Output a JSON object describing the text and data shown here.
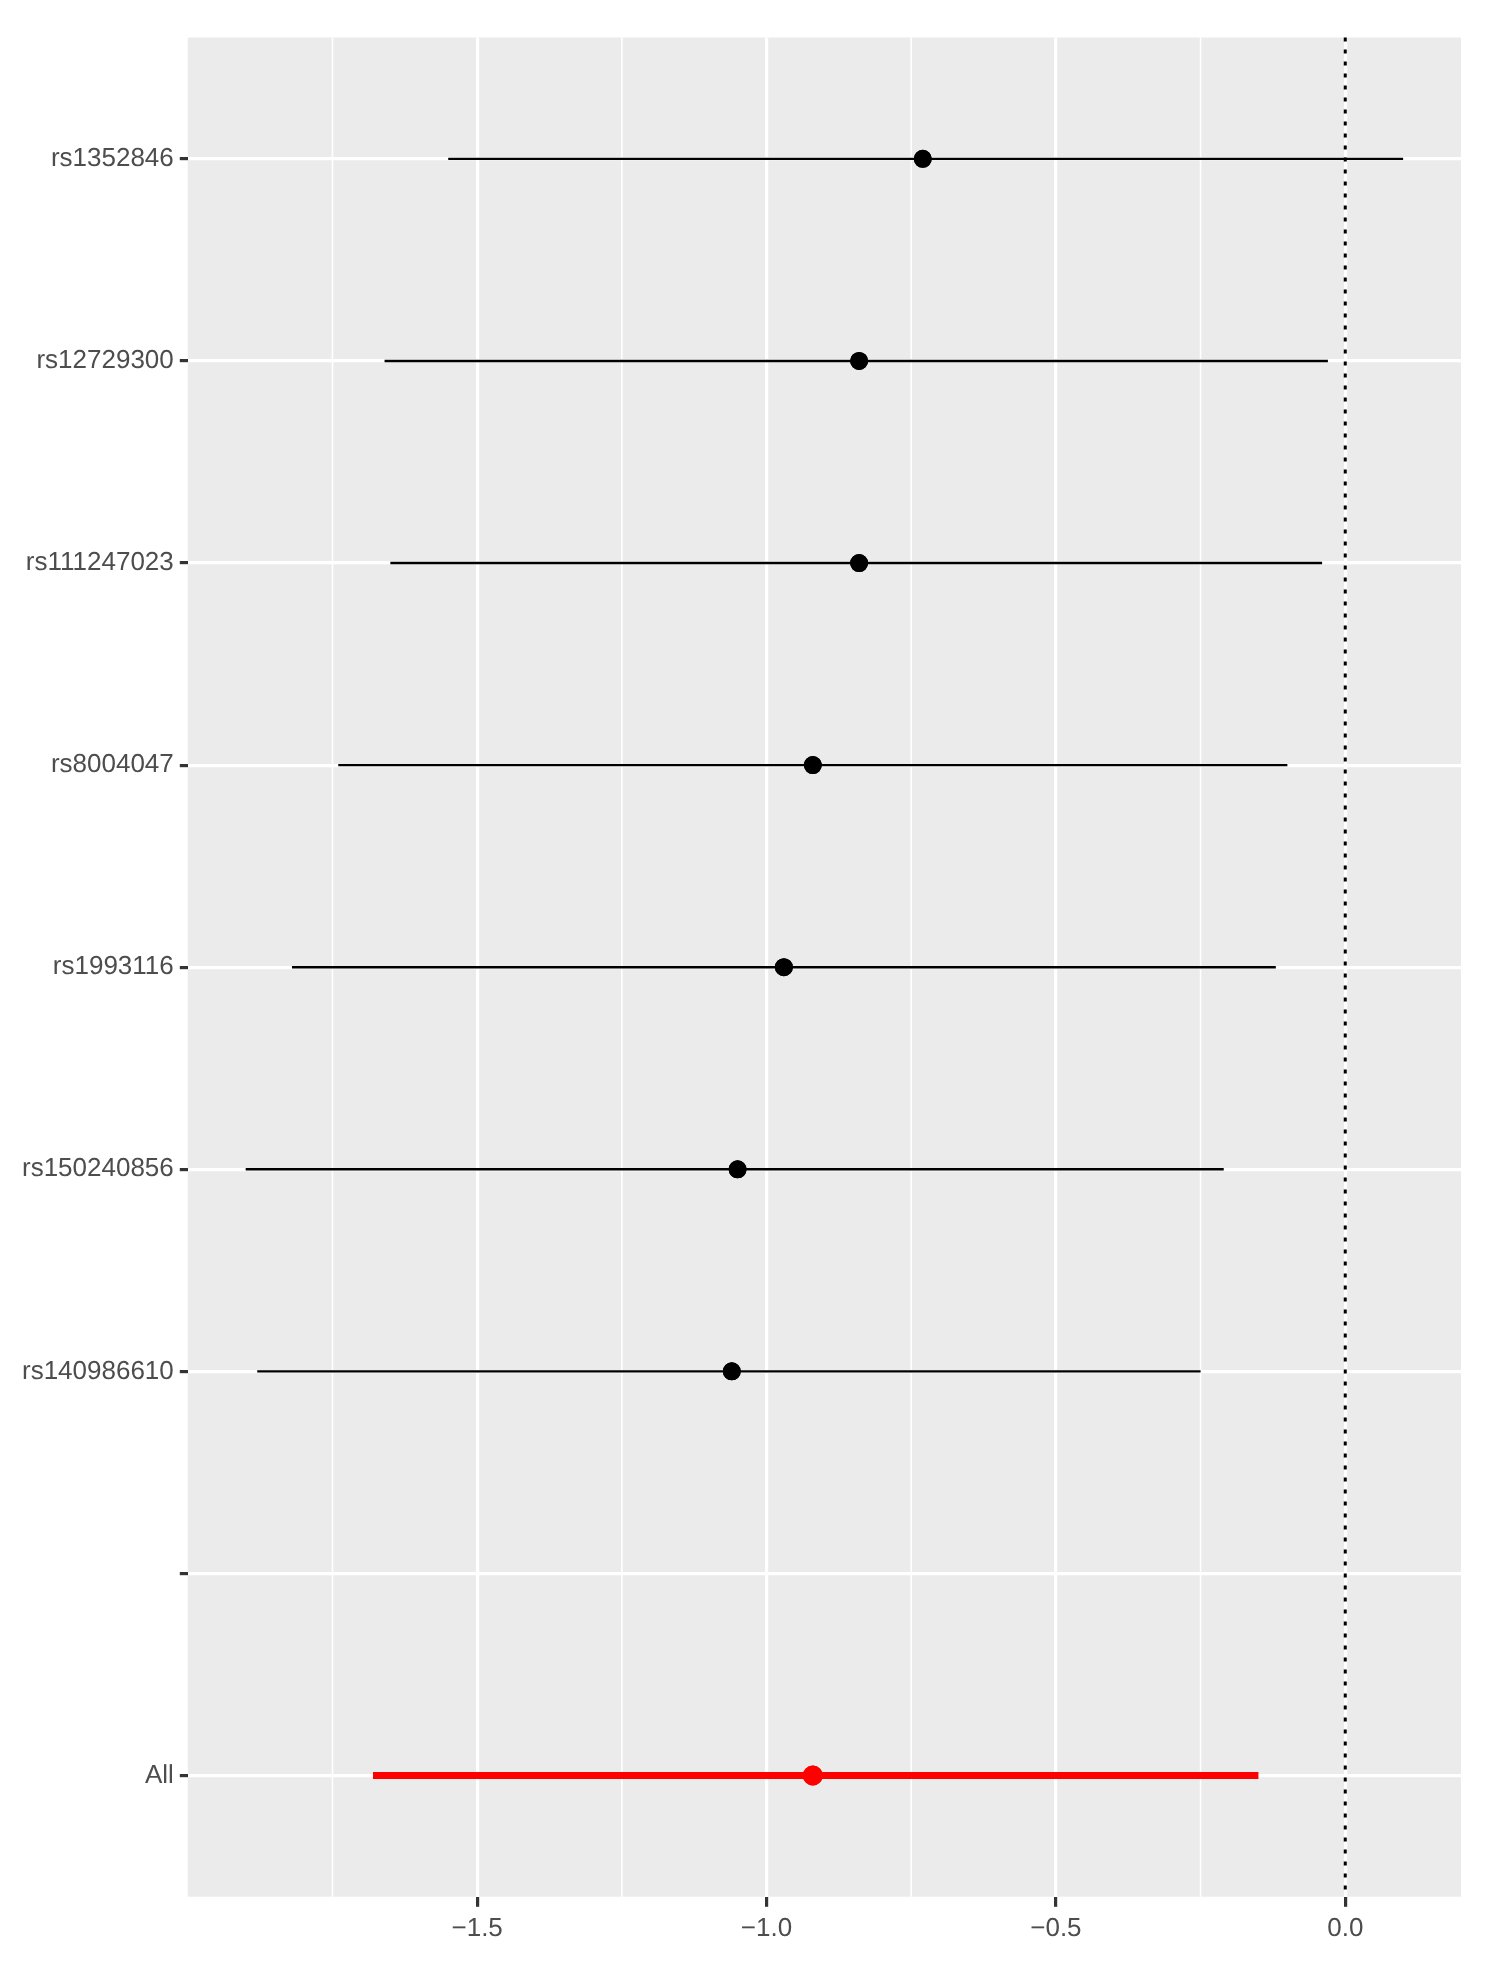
{
  "chart_data": {
    "type": "scatter",
    "orientation": "horizontal",
    "categories": [
      "rs1352846",
      "rs12729300",
      "rs111247023",
      "rs8004047",
      "rs1993116",
      "rs150240856",
      "rs140986610",
      null,
      "All"
    ],
    "series": [
      {
        "color": "#000000",
        "values": [
          -0.73,
          -0.84,
          -0.84,
          -0.92,
          -0.97,
          -1.05,
          -1.06,
          null,
          null
        ],
        "errors": [
          [
            -1.55,
            0.1
          ],
          [
            -1.66,
            -0.03
          ],
          [
            -1.65,
            -0.04
          ],
          [
            -1.74,
            -0.1
          ],
          [
            -1.82,
            -0.12
          ],
          [
            -1.9,
            -0.21
          ],
          [
            -1.88,
            -0.25
          ],
          null,
          null
        ]
      },
      {
        "color": "#ff0000",
        "values": [
          null,
          null,
          null,
          null,
          null,
          null,
          null,
          null,
          -0.92
        ],
        "errors": [
          null,
          null,
          null,
          null,
          null,
          null,
          null,
          null,
          [
            -1.68,
            -0.15
          ]
        ]
      }
    ],
    "xlim": [
      -2.0,
      0.2
    ],
    "xticks": [
      {
        "value": -1.5,
        "label": "−1.5"
      },
      {
        "value": -1.0,
        "label": "−1.0"
      },
      {
        "value": -0.5,
        "label": "−0.5"
      },
      {
        "value": 0,
        "label": "0.0"
      }
    ],
    "ref_lines": [
      {
        "axis": "x",
        "value": 0,
        "color": "#000000",
        "line_style": "dotted"
      }
    ],
    "grid": true,
    "marker": "circle"
  }
}
